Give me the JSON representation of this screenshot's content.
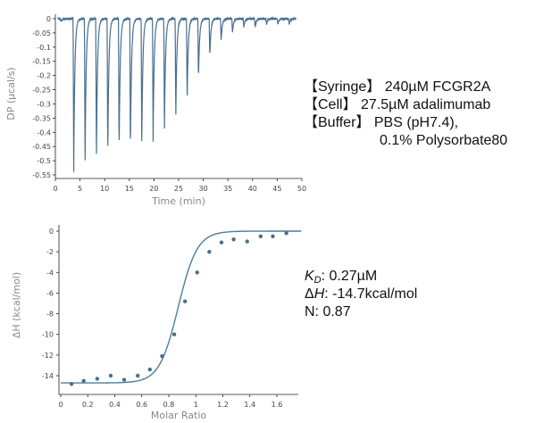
{
  "chart_data": [
    {
      "type": "line",
      "xlabel": "Time (min)",
      "ylabel": "DP (µcal/s)",
      "xlim": [
        0,
        50
      ],
      "ylim": [
        -0.55,
        0.0
      ],
      "xticks": [
        0,
        5,
        10,
        15,
        20,
        25,
        30,
        35,
        40,
        45,
        50
      ],
      "yticks": [
        0,
        -0.05,
        -0.1,
        -0.15,
        -0.2,
        -0.25,
        -0.3,
        -0.35,
        -0.4,
        -0.45,
        -0.5,
        -0.55
      ],
      "xtick_labels": [
        "0",
        "5",
        "10",
        "15",
        "20",
        "25",
        "30",
        "35",
        "40",
        "45",
        "50"
      ],
      "ytick_labels": [
        "0",
        "-0.05",
        "-0.1",
        "-0.15",
        "-0.2",
        "-0.25",
        "-0.3",
        "-0.35",
        "-0.4",
        "-0.45",
        "-0.5",
        "-0.55"
      ],
      "baseline": 0.0,
      "injections": {
        "time": [
          1.0,
          3.6,
          5.9,
          8.2,
          10.5,
          12.8,
          15.1,
          17.4,
          19.7,
          22.0,
          24.3,
          26.6,
          28.9,
          31.2,
          33.5,
          35.8,
          38.1,
          40.4,
          42.7,
          45.0,
          47.3
        ],
        "peak": [
          -0.01,
          -0.54,
          -0.52,
          -0.51,
          -0.5,
          -0.49,
          -0.48,
          -0.46,
          -0.43,
          -0.4,
          -0.36,
          -0.3,
          -0.22,
          -0.14,
          -0.08,
          -0.05,
          -0.03,
          -0.03,
          -0.02,
          -0.02,
          -0.02
        ]
      },
      "line_color": "#4a6f8e",
      "grid": false
    },
    {
      "type": "scatter",
      "xlabel": "Molar Ratio",
      "ylabel": "ΔH (kcal/mol)",
      "xlim": [
        0,
        1.8
      ],
      "ylim": [
        -15.5,
        0.5
      ],
      "xticks": [
        0,
        0.2,
        0.4,
        0.6,
        0.8,
        1,
        1.2,
        1.4,
        1.6
      ],
      "yticks": [
        0,
        -2,
        -4,
        -6,
        -8,
        -10,
        -12,
        -14
      ],
      "xtick_labels": [
        "0",
        "0.2",
        "0.4",
        "0.6",
        "0.8",
        "1",
        "1.2",
        "1.4",
        "1.6"
      ],
      "ytick_labels": [
        "0",
        "-2",
        "-4",
        "-6",
        "-8",
        "-10",
        "-12",
        "-14"
      ],
      "points": {
        "x": [
          0.08,
          0.17,
          0.27,
          0.37,
          0.47,
          0.57,
          0.66,
          0.75,
          0.84,
          0.92,
          1.01,
          1.1,
          1.19,
          1.28,
          1.38,
          1.48,
          1.57,
          1.67
        ],
        "y": [
          -14.8,
          -14.5,
          -14.3,
          -14.0,
          -14.4,
          -14.0,
          -13.4,
          -12.1,
          -10.0,
          -6.8,
          -4.0,
          -2.0,
          -1.1,
          -0.8,
          -1.0,
          -0.5,
          -0.5,
          -0.2
        ]
      },
      "fit": {
        "dH": -14.7,
        "x0": 0.87,
        "width": 0.07
      },
      "point_color": "#4a6f8e",
      "line_color": "#4a7f9a",
      "grid": false
    }
  ],
  "info1": {
    "syringe_label": "【Syringe】",
    "syringe_value": "240µM FCGR2A",
    "cell_label": "【Cell】",
    "cell_value": "27.5µM adalimumab",
    "buffer_label": "【Buffer】",
    "buffer_value": "PBS (pH7.4),",
    "buffer_value2": "0.1% Polysorbate80"
  },
  "info2": {
    "kd_symbol": "K",
    "kd_sub": "D",
    "kd_value": ": 0.27µM",
    "dh_prefix": "Δ",
    "dh_symbol": "H",
    "dh_value": ": -14.7kcal/mol",
    "n_value": "N: 0.87"
  }
}
